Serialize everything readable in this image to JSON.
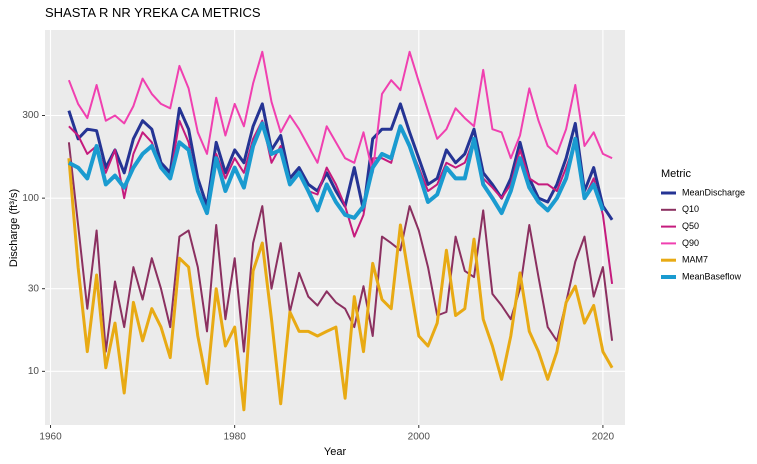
{
  "chart_data": {
    "type": "line",
    "title": "SHASTA R NR YREKA CA  METRICS",
    "x_label": "Year",
    "y_label": "Discharge (ft³/s)",
    "legend_title": "Metric",
    "legend_position": "right",
    "log_y": true,
    "grid": true,
    "xlim": [
      1959.4,
      2022.4
    ],
    "xticks": [
      1960,
      1980,
      2000,
      2020
    ],
    "ylim": [
      4.9,
      935
    ],
    "yticks": [
      10,
      30,
      100,
      300
    ],
    "x": [
      1962,
      1963,
      1964,
      1965,
      1966,
      1967,
      1968,
      1969,
      1970,
      1971,
      1972,
      1973,
      1974,
      1975,
      1976,
      1977,
      1978,
      1979,
      1980,
      1981,
      1982,
      1983,
      1984,
      1985,
      1986,
      1987,
      1988,
      1989,
      1990,
      1991,
      1992,
      1993,
      1994,
      1995,
      1996,
      1997,
      1998,
      1999,
      2000,
      2001,
      2002,
      2003,
      2004,
      2005,
      2006,
      2007,
      2008,
      2009,
      2010,
      2011,
      2012,
      2013,
      2014,
      2015,
      2016,
      2017,
      2018,
      2019,
      2020,
      2021
    ],
    "series": [
      {
        "name": "MeanDischarge",
        "color": "#253494",
        "values": [
          320,
          220,
          250,
          245,
          150,
          190,
          140,
          220,
          280,
          250,
          160,
          140,
          330,
          250,
          130,
          90,
          210,
          140,
          190,
          160,
          260,
          350,
          190,
          230,
          130,
          150,
          120,
          110,
          140,
          110,
          90,
          150,
          85,
          220,
          250,
          250,
          350,
          240,
          170,
          120,
          130,
          190,
          160,
          180,
          250,
          140,
          120,
          100,
          130,
          210,
          130,
          100,
          95,
          120,
          170,
          270,
          110,
          150,
          90,
          75
        ]
      },
      {
        "name": "Q10",
        "color": "#8B3060",
        "values": [
          210,
          70,
          23,
          65,
          13,
          33,
          18,
          40,
          26,
          45,
          30,
          18,
          60,
          65,
          40,
          17,
          70,
          20,
          45,
          13,
          55,
          90,
          30,
          55,
          22,
          37,
          27,
          24,
          29,
          25,
          23,
          18,
          31,
          16,
          60,
          55,
          50,
          90,
          65,
          40,
          21,
          22,
          60,
          38,
          35,
          85,
          28,
          24,
          20,
          30,
          70,
          35,
          18,
          15,
          25,
          43,
          60,
          27,
          40,
          15
        ]
      },
      {
        "name": "Q50",
        "color": "#C51B7D",
        "values": [
          260,
          230,
          180,
          200,
          140,
          190,
          100,
          180,
          240,
          210,
          150,
          130,
          280,
          210,
          110,
          85,
          180,
          130,
          170,
          140,
          220,
          280,
          160,
          200,
          120,
          140,
          110,
          105,
          150,
          120,
          90,
          60,
          80,
          170,
          170,
          160,
          260,
          200,
          150,
          110,
          120,
          160,
          150,
          160,
          220,
          130,
          115,
          100,
          120,
          190,
          130,
          120,
          120,
          110,
          150,
          210,
          100,
          130,
          80,
          32
        ]
      },
      {
        "name": "Q90",
        "color": "#F040B0",
        "values": [
          480,
          350,
          290,
          450,
          280,
          300,
          270,
          340,
          490,
          400,
          350,
          330,
          580,
          430,
          240,
          180,
          380,
          230,
          350,
          260,
          460,
          700,
          360,
          240,
          300,
          250,
          200,
          160,
          260,
          210,
          170,
          160,
          240,
          140,
          400,
          480,
          420,
          700,
          470,
          320,
          220,
          250,
          330,
          290,
          260,
          550,
          250,
          240,
          170,
          230,
          430,
          280,
          200,
          180,
          250,
          450,
          200,
          240,
          180,
          170
        ]
      },
      {
        "name": "MAM7",
        "color": "#E8AA14",
        "values": [
          170,
          40,
          13,
          36,
          10.5,
          19,
          7.5,
          25,
          15,
          23,
          18,
          12,
          45,
          40,
          16,
          8.5,
          30,
          14,
          18,
          6,
          38,
          55,
          20,
          6.5,
          22,
          17,
          17,
          16,
          17,
          18,
          7,
          27,
          13,
          42,
          26,
          23,
          70,
          33,
          16,
          14,
          19,
          50,
          21,
          23,
          58,
          20,
          14,
          9,
          16,
          37,
          17,
          13,
          9,
          13,
          25,
          31,
          19,
          24,
          13,
          10.5
        ]
      },
      {
        "name": "MeanBaseflow",
        "color": "#1A9BD0",
        "values": [
          160,
          150,
          130,
          200,
          120,
          135,
          115,
          150,
          180,
          200,
          150,
          130,
          210,
          190,
          110,
          82,
          170,
          110,
          150,
          115,
          200,
          270,
          180,
          190,
          120,
          140,
          110,
          85,
          120,
          95,
          80,
          77,
          90,
          150,
          180,
          170,
          260,
          200,
          140,
          95,
          105,
          150,
          130,
          130,
          220,
          120,
          100,
          82,
          110,
          170,
          115,
          95,
          85,
          100,
          130,
          220,
          100,
          120,
          85,
          null
        ]
      }
    ]
  }
}
